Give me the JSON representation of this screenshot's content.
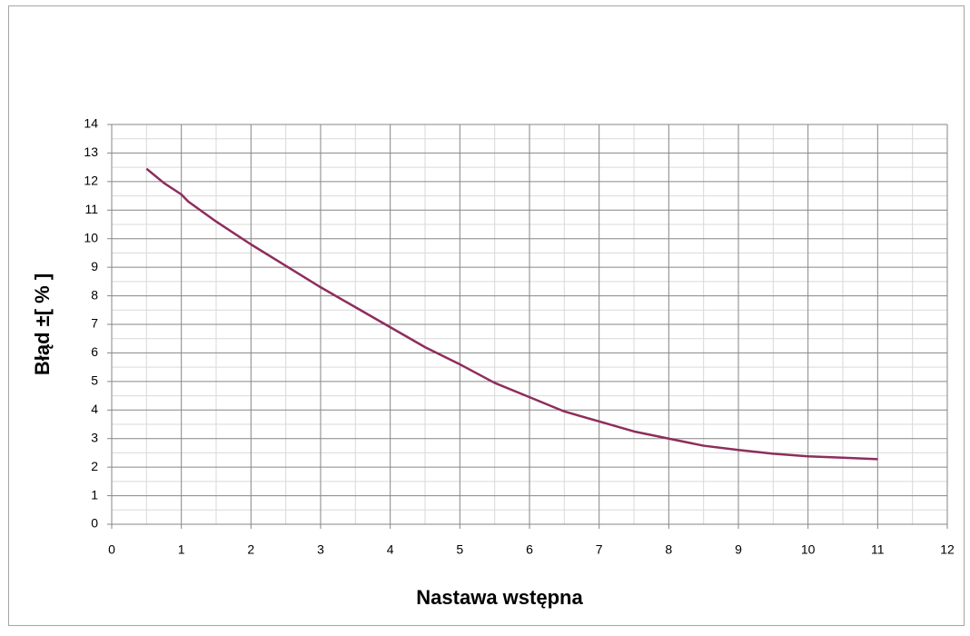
{
  "chart_data": {
    "type": "line",
    "xlabel": "Nastawa wstępna",
    "ylabel": "Błąd ±[ % ]",
    "xlim": [
      0,
      12
    ],
    "xticks": [
      0,
      1,
      2,
      3,
      4,
      5,
      6,
      7,
      8,
      9,
      10,
      11,
      12
    ],
    "ylim": [
      0,
      14
    ],
    "yticks": [
      0,
      1,
      2,
      3,
      4,
      5,
      6,
      7,
      8,
      9,
      10,
      11,
      12,
      13,
      14
    ],
    "grid": true,
    "minor_grid": true,
    "series": [
      {
        "color": "#8e2d5c",
        "x": [
          0.5,
          0.6,
          0.75,
          1,
          1.1,
          1.5,
          2,
          2.5,
          3,
          3.5,
          4,
          4.5,
          5,
          5.5,
          6,
          6.5,
          7,
          7.5,
          8,
          8.5,
          9,
          9.5,
          10,
          10.5,
          11
        ],
        "values": [
          12.45,
          12.25,
          11.95,
          11.55,
          11.3,
          10.6,
          9.8,
          9.05,
          8.3,
          7.6,
          6.9,
          6.2,
          5.6,
          4.95,
          4.45,
          3.95,
          3.6,
          3.25,
          3.0,
          2.75,
          2.6,
          2.47,
          2.38,
          2.33,
          2.28
        ]
      }
    ]
  }
}
